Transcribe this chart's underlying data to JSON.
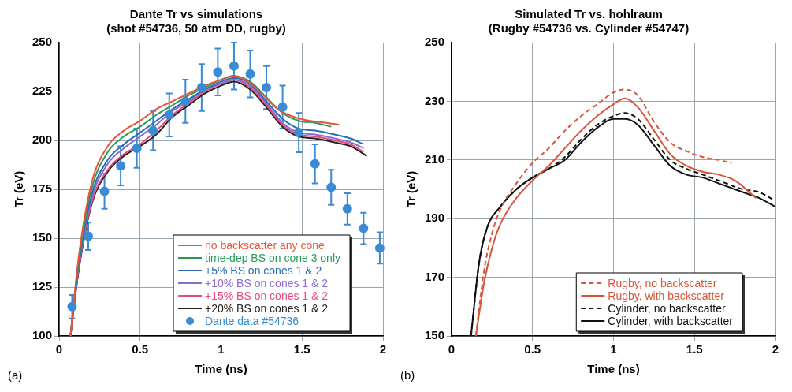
{
  "chart_data": [
    {
      "type": "line",
      "title": "Dante Tr vs simulations",
      "subtitle": "(shot #54736, 50 atm DD, rugby)",
      "xlabel": "Time (ns)",
      "ylabel": "Tr (eV)",
      "annotations": [
        "(a)"
      ],
      "xlim": [
        0,
        2
      ],
      "ylim": [
        100,
        250
      ],
      "xticks": [
        0,
        0.5,
        1,
        1.5,
        2
      ],
      "yticks": [
        100,
        125,
        150,
        175,
        200,
        225,
        250
      ],
      "grid": true,
      "legend": "bottom right",
      "line_style": "solid",
      "series": [
        {
          "name": "no backscatter any cone",
          "color": "#e8553a",
          "x": [
            0.07,
            0.12,
            0.2,
            0.3,
            0.4,
            0.5,
            0.6,
            0.7,
            0.8,
            0.9,
            1.0,
            1.07,
            1.15,
            1.25,
            1.35,
            1.45,
            1.55,
            1.65,
            1.73
          ],
          "values": [
            100,
            140,
            178,
            197,
            205,
            210,
            216,
            220,
            224,
            228,
            231,
            233,
            231,
            224,
            216,
            212,
            210,
            209,
            208
          ]
        },
        {
          "name": "time-dep BS on cone 3 only",
          "color": "#2a9a5a",
          "x": [
            0.07,
            0.12,
            0.2,
            0.3,
            0.4,
            0.5,
            0.6,
            0.7,
            0.8,
            0.9,
            1.0,
            1.08,
            1.18,
            1.28,
            1.38,
            1.48,
            1.58,
            1.68
          ],
          "values": [
            100,
            138,
            175,
            194,
            202,
            207,
            213,
            218,
            223,
            227,
            231,
            233,
            230,
            222,
            214,
            210,
            209,
            207
          ]
        },
        {
          "name": "+5% BS on cones 1 & 2",
          "color": "#2a6db5",
          "x": [
            0.07,
            0.12,
            0.2,
            0.3,
            0.4,
            0.5,
            0.6,
            0.7,
            0.8,
            0.9,
            1.0,
            1.08,
            1.18,
            1.28,
            1.38,
            1.48,
            1.58,
            1.7,
            1.8,
            1.88
          ],
          "values": [
            100,
            136,
            172,
            190,
            198,
            204,
            210,
            216,
            221,
            226,
            230,
            232,
            229,
            220,
            211,
            206,
            205,
            203,
            201,
            198
          ]
        },
        {
          "name": "+10% BS on cones 1 & 2",
          "color": "#8a6bd0",
          "x": [
            0.07,
            0.12,
            0.2,
            0.3,
            0.4,
            0.5,
            0.6,
            0.7,
            0.8,
            0.9,
            1.0,
            1.08,
            1.18,
            1.28,
            1.38,
            1.48,
            1.58,
            1.7,
            1.8,
            1.88
          ],
          "values": [
            100,
            135,
            170,
            188,
            196,
            202,
            208,
            215,
            220,
            226,
            229,
            231,
            228,
            219,
            209,
            204,
            203,
            201,
            199,
            196
          ]
        },
        {
          "name": "+15% BS on cones 1 & 2",
          "color": "#e84a7a",
          "x": [
            0.07,
            0.12,
            0.2,
            0.3,
            0.4,
            0.5,
            0.6,
            0.7,
            0.8,
            0.9,
            1.0,
            1.08,
            1.18,
            1.28,
            1.38,
            1.48,
            1.58,
            1.7,
            1.8,
            1.88
          ],
          "values": [
            100,
            134,
            168,
            185,
            193,
            198,
            205,
            213,
            219,
            225,
            229,
            231,
            227,
            218,
            208,
            203,
            202,
            200,
            198,
            194
          ]
        },
        {
          "name": "+20% BS on cones 1 & 2",
          "color": "#222222",
          "x": [
            0.07,
            0.12,
            0.2,
            0.3,
            0.4,
            0.5,
            0.6,
            0.7,
            0.8,
            0.9,
            1.0,
            1.08,
            1.18,
            1.28,
            1.38,
            1.48,
            1.58,
            1.7,
            1.8,
            1.9
          ],
          "values": [
            100,
            133,
            167,
            184,
            192,
            197,
            203,
            212,
            218,
            224,
            228,
            230,
            226,
            217,
            207,
            202,
            201,
            199,
            197,
            192
          ]
        },
        {
          "name": "Dante data #54736",
          "type": "scatter",
          "marker": "circle",
          "color": "#3a8ad4",
          "x": [
            0.08,
            0.18,
            0.28,
            0.38,
            0.48,
            0.58,
            0.68,
            0.78,
            0.88,
            0.98,
            1.08,
            1.18,
            1.28,
            1.38,
            1.48,
            1.58,
            1.68,
            1.78,
            1.88,
            1.98
          ],
          "values": [
            115,
            151,
            174,
            187,
            196,
            205,
            213,
            220,
            227,
            235,
            238,
            234,
            227,
            217,
            204,
            188,
            176,
            165,
            155,
            145
          ],
          "errors": [
            6,
            7,
            9,
            10,
            10,
            10,
            11,
            11,
            12,
            12,
            12,
            12,
            11,
            11,
            10,
            10,
            9,
            8,
            8,
            8
          ]
        }
      ]
    },
    {
      "type": "line",
      "title": "Simulated Tr vs. hohlraum",
      "subtitle": "(Rugby #54736 vs. Cylinder #54747)",
      "xlabel": "Time (ns)",
      "ylabel": "Tr (eV)",
      "annotations": [
        "(b)"
      ],
      "xlim": [
        0,
        2
      ],
      "ylim": [
        150,
        250
      ],
      "xticks": [
        0,
        0.5,
        1,
        1.5,
        2
      ],
      "yticks": [
        150,
        170,
        190,
        210,
        230,
        250
      ],
      "grid": true,
      "legend": "bottom right",
      "series": [
        {
          "name": "Rugby, no backscatter",
          "color": "#d9553a",
          "line_style": "dashed",
          "x": [
            0.15,
            0.2,
            0.25,
            0.3,
            0.4,
            0.5,
            0.6,
            0.7,
            0.8,
            0.9,
            1.0,
            1.07,
            1.15,
            1.25,
            1.35,
            1.45,
            1.55,
            1.65,
            1.73
          ],
          "values": [
            150,
            172,
            185,
            193,
            202,
            209,
            214,
            220,
            225,
            229,
            233,
            234,
            232,
            223,
            216,
            213,
            211,
            210,
            209
          ]
        },
        {
          "name": "Rugby, with backscatter",
          "color": "#d9553a",
          "line_style": "solid",
          "x": [
            0.15,
            0.2,
            0.25,
            0.3,
            0.4,
            0.5,
            0.6,
            0.7,
            0.8,
            0.9,
            1.0,
            1.07,
            1.15,
            1.25,
            1.35,
            1.45,
            1.55,
            1.65,
            1.75,
            1.88
          ],
          "values": [
            150,
            168,
            180,
            188,
            197,
            203,
            208,
            214,
            220,
            225,
            229,
            231,
            228,
            220,
            212,
            208,
            206,
            205,
            203,
            197
          ]
        },
        {
          "name": "Cylinder, no backscatter",
          "color": "#111111",
          "line_style": "dashed",
          "x": [
            0.12,
            0.17,
            0.22,
            0.3,
            0.4,
            0.5,
            0.6,
            0.7,
            0.8,
            0.9,
            1.0,
            1.07,
            1.15,
            1.25,
            1.35,
            1.45,
            1.55,
            1.65,
            1.8,
            1.9,
            2.0
          ],
          "values": [
            150,
            175,
            187,
            194,
            200,
            204,
            207,
            211,
            217,
            222,
            225,
            226,
            224,
            217,
            210,
            207,
            205,
            203,
            200,
            199,
            196
          ]
        },
        {
          "name": "Cylinder, with backscatter",
          "color": "#111111",
          "line_style": "solid",
          "x": [
            0.12,
            0.17,
            0.22,
            0.3,
            0.4,
            0.5,
            0.6,
            0.7,
            0.8,
            0.9,
            1.0,
            1.07,
            1.15,
            1.25,
            1.35,
            1.45,
            1.55,
            1.65,
            1.8,
            1.9,
            2.0
          ],
          "values": [
            150,
            175,
            187,
            194,
            200,
            204,
            207,
            210,
            216,
            221,
            224,
            224,
            222,
            215,
            208,
            205,
            204,
            202,
            199,
            197,
            194
          ]
        }
      ]
    }
  ]
}
